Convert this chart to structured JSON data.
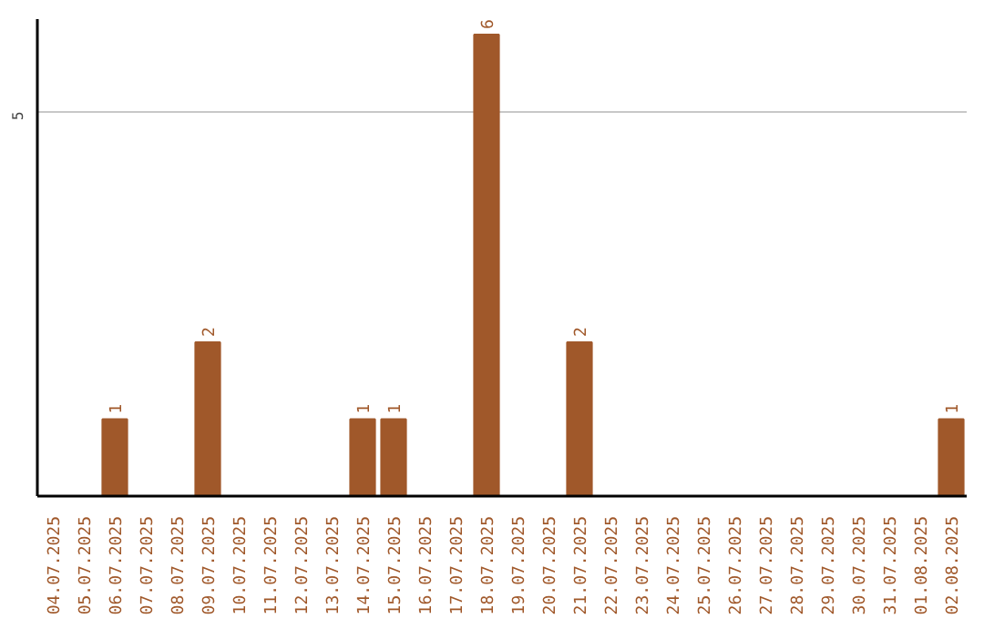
{
  "chart_data": {
    "type": "bar",
    "categories": [
      "04.07.2025",
      "05.07.2025",
      "06.07.2025",
      "07.07.2025",
      "08.07.2025",
      "09.07.2025",
      "10.07.2025",
      "11.07.2025",
      "12.07.2025",
      "13.07.2025",
      "14.07.2025",
      "15.07.2025",
      "16.07.2025",
      "17.07.2025",
      "18.07.2025",
      "19.07.2025",
      "20.07.2025",
      "21.07.2025",
      "22.07.2025",
      "23.07.2025",
      "24.07.2025",
      "25.07.2025",
      "26.07.2025",
      "27.07.2025",
      "28.07.2025",
      "29.07.2025",
      "30.07.2025",
      "31.07.2025",
      "01.08.2025",
      "02.08.2025"
    ],
    "values": [
      0,
      0,
      1,
      0,
      0,
      2,
      0,
      0,
      0,
      0,
      1,
      1,
      0,
      0,
      6,
      0,
      0,
      2,
      0,
      0,
      0,
      0,
      0,
      0,
      0,
      0,
      0,
      0,
      0,
      1
    ],
    "color": "#a0582a",
    "value_labels": [
      null,
      null,
      "1",
      null,
      null,
      "2",
      null,
      null,
      null,
      null,
      "1",
      "1",
      null,
      null,
      "6",
      null,
      null,
      "2",
      null,
      null,
      null,
      null,
      null,
      null,
      null,
      null,
      null,
      null,
      null,
      "1"
    ],
    "ylim": [
      0,
      6.2
    ],
    "yticks": [
      5
    ],
    "grid": "y"
  }
}
